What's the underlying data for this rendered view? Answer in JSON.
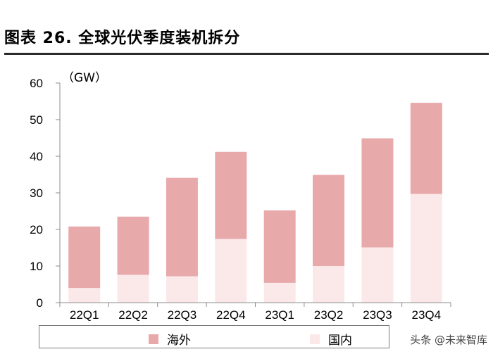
{
  "title": "图表 26. 全球光伏季度装机拆分",
  "unit": "（GW）",
  "watermark": "头条 @未来智库",
  "colors": {
    "overseas": "#e8a9ab",
    "domestic": "#fbe9ea",
    "axis": "#8c8c8c"
  },
  "chart_data": {
    "type": "bar",
    "stacked": true,
    "categories": [
      "22Q1",
      "22Q2",
      "22Q3",
      "22Q4",
      "23Q1",
      "23Q2",
      "23Q3",
      "23Q4"
    ],
    "series": [
      {
        "name": "国内",
        "values": [
          4.0,
          7.6,
          7.2,
          17.4,
          5.4,
          10.0,
          15.1,
          29.7
        ]
      },
      {
        "name": "海外",
        "values": [
          16.8,
          15.9,
          26.9,
          23.8,
          19.8,
          24.9,
          29.8,
          24.9
        ]
      }
    ],
    "yticks": [
      0,
      10,
      20,
      30,
      40,
      50,
      60
    ],
    "ylim": [
      0,
      60
    ],
    "ylabel": "（GW）",
    "legend": "bottom",
    "legend_order": [
      "海外",
      "国内"
    ],
    "grid": false
  }
}
